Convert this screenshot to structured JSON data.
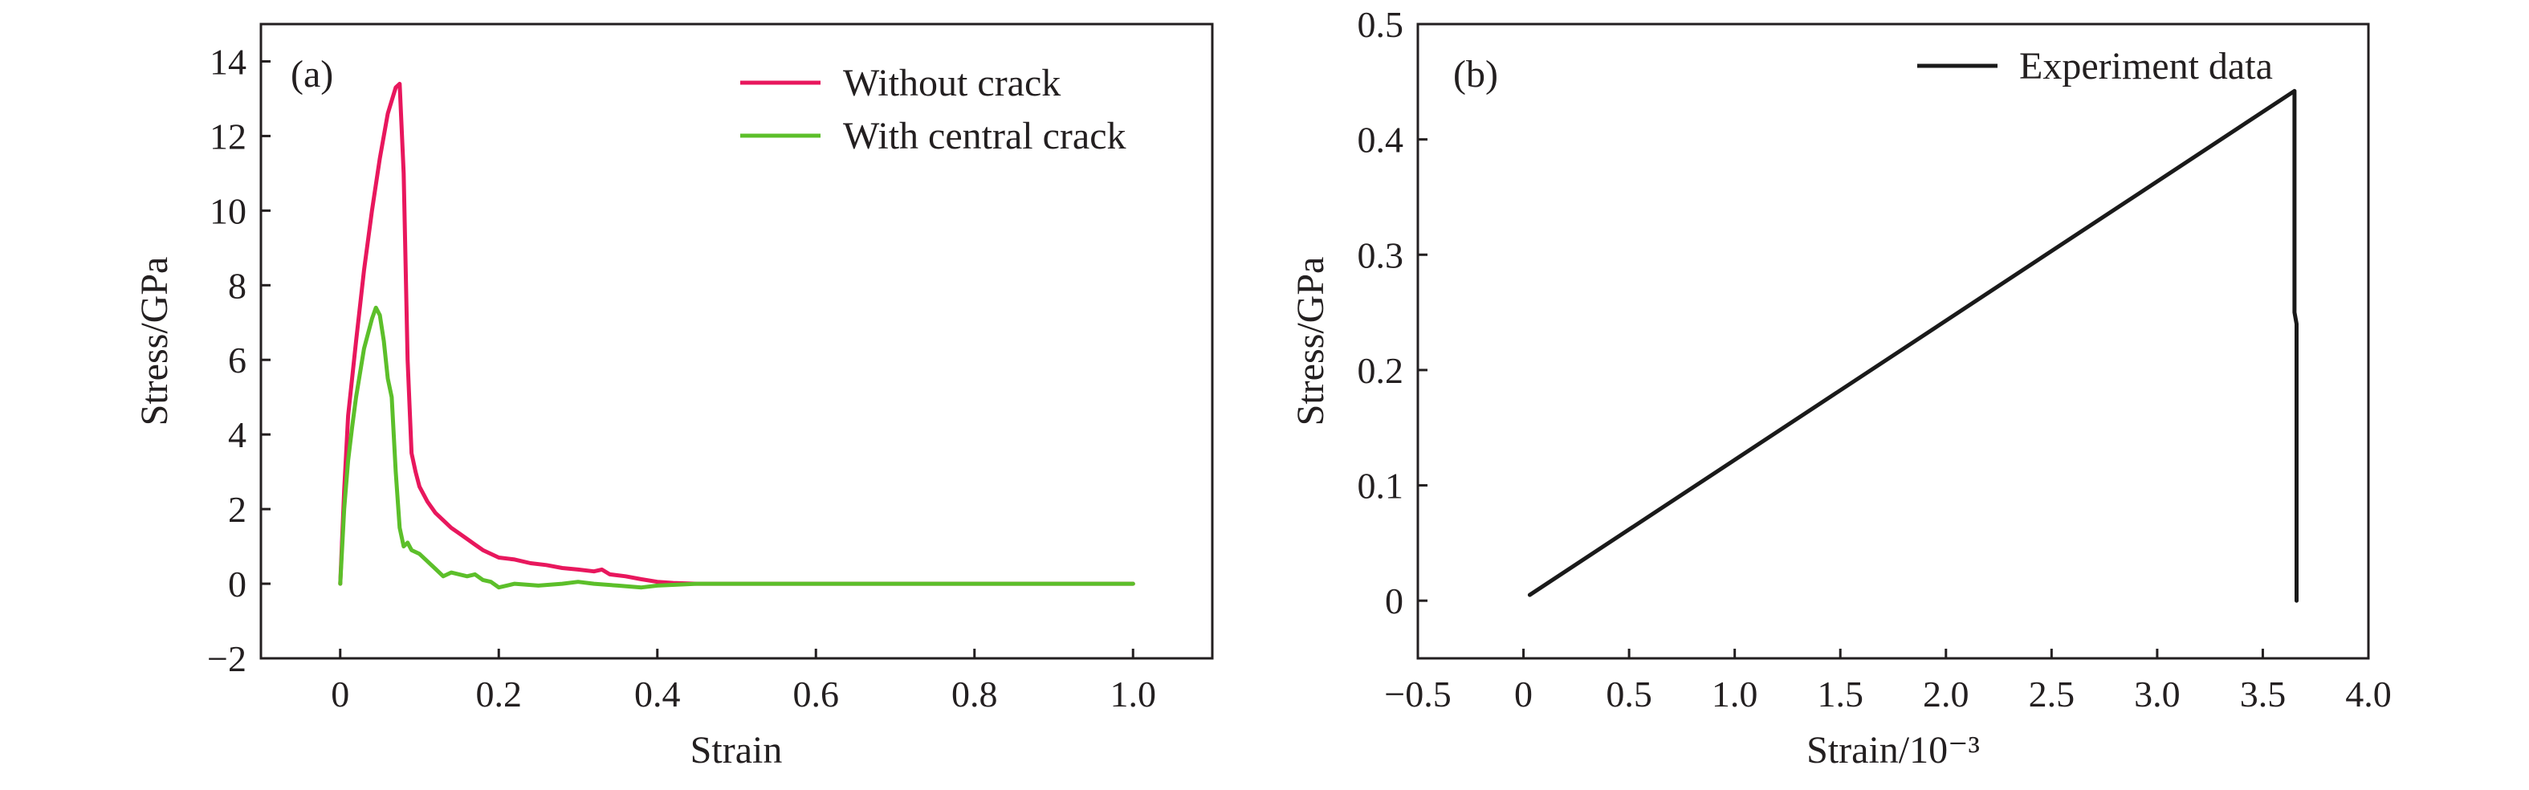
{
  "chart_data": [
    {
      "panel_label": "(a)",
      "type": "line",
      "xlabel": "Strain",
      "ylabel": "Stress/GPa",
      "xlim": [
        -0.1,
        1.1
      ],
      "ylim": [
        -2,
        15
      ],
      "x_ticks": [
        0,
        0.2,
        0.4,
        0.6,
        0.8,
        1.0
      ],
      "x_tick_labels": [
        "0",
        "0.2",
        "0.4",
        "0.6",
        "0.8",
        "1.0"
      ],
      "y_ticks": [
        -2,
        0,
        2,
        4,
        6,
        8,
        10,
        12,
        14
      ],
      "y_tick_labels": [
        "−2",
        "0",
        "2",
        "4",
        "6",
        "8",
        "10",
        "12",
        "14"
      ],
      "grid": false,
      "legend_position": "top-right",
      "series": [
        {
          "name": "Without crack",
          "color": "#e8175d",
          "x": [
            0,
            0.005,
            0.01,
            0.02,
            0.03,
            0.04,
            0.05,
            0.06,
            0.07,
            0.075,
            0.08,
            0.085,
            0.09,
            0.095,
            0.1,
            0.11,
            0.12,
            0.13,
            0.14,
            0.15,
            0.16,
            0.17,
            0.18,
            0.19,
            0.2,
            0.22,
            0.24,
            0.26,
            0.28,
            0.3,
            0.32,
            0.33,
            0.34,
            0.36,
            0.38,
            0.4,
            0.42,
            0.45,
            0.5,
            0.55,
            0.6,
            0.65,
            0.7,
            0.75,
            0.8,
            0.85,
            0.9,
            0.95,
            1.0
          ],
          "values": [
            0,
            2.5,
            4.5,
            6.5,
            8.4,
            10.0,
            11.4,
            12.6,
            13.3,
            13.4,
            11.0,
            6.0,
            3.5,
            3.0,
            2.6,
            2.2,
            1.9,
            1.7,
            1.5,
            1.35,
            1.2,
            1.05,
            0.9,
            0.8,
            0.7,
            0.65,
            0.55,
            0.5,
            0.42,
            0.38,
            0.33,
            0.38,
            0.25,
            0.2,
            0.12,
            0.05,
            0.02,
            0.0,
            0.0,
            0.0,
            0.0,
            0.0,
            0.0,
            0.0,
            0.0,
            0.0,
            0.0,
            0.0,
            0.0
          ]
        },
        {
          "name": "With central crack",
          "color": "#5cbf2a",
          "x": [
            0,
            0.005,
            0.01,
            0.015,
            0.02,
            0.03,
            0.04,
            0.045,
            0.05,
            0.055,
            0.06,
            0.065,
            0.07,
            0.075,
            0.08,
            0.085,
            0.09,
            0.1,
            0.11,
            0.12,
            0.13,
            0.14,
            0.15,
            0.16,
            0.17,
            0.18,
            0.19,
            0.2,
            0.22,
            0.25,
            0.28,
            0.3,
            0.32,
            0.35,
            0.38,
            0.4,
            0.45,
            0.5,
            0.55,
            0.6,
            0.65,
            0.7,
            0.75,
            0.8,
            0.85,
            0.9,
            0.95,
            1.0
          ],
          "values": [
            0,
            2.0,
            3.3,
            4.2,
            5.0,
            6.3,
            7.1,
            7.4,
            7.2,
            6.5,
            5.5,
            5.0,
            3.0,
            1.5,
            1.0,
            1.1,
            0.9,
            0.8,
            0.6,
            0.4,
            0.2,
            0.3,
            0.25,
            0.2,
            0.25,
            0.1,
            0.05,
            -0.1,
            0.0,
            -0.05,
            0.0,
            0.05,
            0.0,
            -0.05,
            -0.1,
            -0.05,
            0.0,
            0.0,
            0.0,
            0.0,
            0.0,
            0.0,
            0.0,
            0.0,
            0.0,
            0.0,
            0.0,
            0.0
          ]
        }
      ]
    },
    {
      "panel_label": "(b)",
      "type": "line",
      "xlabel": "Strain/10⁻³",
      "ylabel": "Stress/GPa",
      "xlim": [
        -0.5,
        4.0
      ],
      "ylim": [
        -0.05,
        0.5
      ],
      "x_ticks": [
        -0.5,
        0,
        0.5,
        1.0,
        1.5,
        2.0,
        2.5,
        3.0,
        3.5,
        4.0
      ],
      "x_tick_labels": [
        "−0.5",
        "0",
        "0.5",
        "1.0",
        "1.5",
        "2.0",
        "2.5",
        "3.0",
        "3.5",
        "4.0"
      ],
      "y_ticks": [
        0,
        0.1,
        0.2,
        0.3,
        0.4,
        0.5
      ],
      "y_tick_labels": [
        "0",
        "0.1",
        "0.2",
        "0.3",
        "0.4",
        "0.5"
      ],
      "grid": false,
      "legend_position": "top-right",
      "series": [
        {
          "name": "Experiment data",
          "color": "#1a1a1a",
          "x": [
            0.03,
            3.65,
            3.65,
            3.66,
            3.66
          ],
          "values": [
            0.005,
            0.442,
            0.25,
            0.24,
            0.0
          ]
        }
      ]
    }
  ]
}
